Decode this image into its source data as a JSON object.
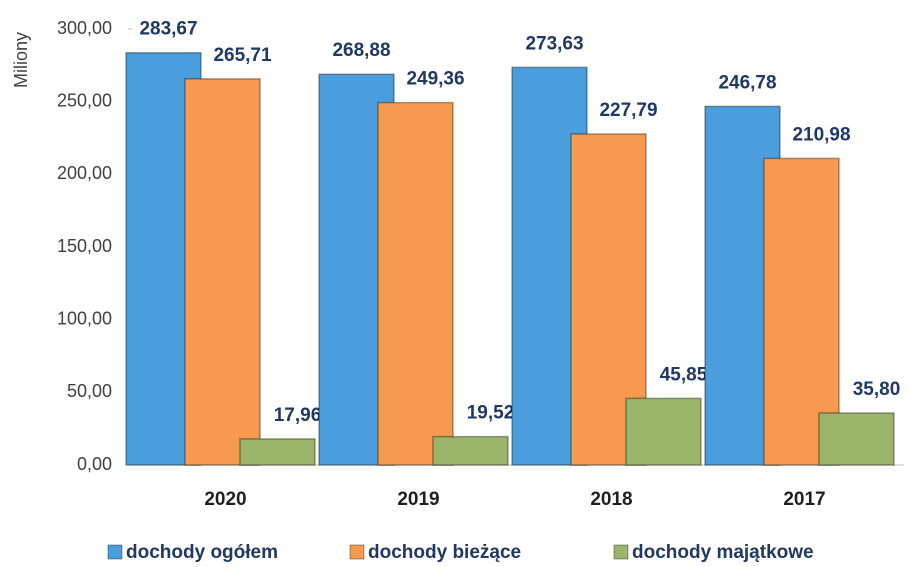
{
  "chart_data": {
    "type": "bar",
    "y_label": "Miliony",
    "categories": [
      "2020",
      "2019",
      "2018",
      "2017"
    ],
    "series": [
      {
        "name": "dochody ogółem",
        "color": "#4a9ede",
        "values": [
          283.67,
          268.88,
          273.63,
          246.78
        ],
        "value_labels": [
          "283,67",
          "268,88",
          "273,63",
          "246,78"
        ]
      },
      {
        "name": "dochody bieżące",
        "color": "#f59a4e",
        "values": [
          265.71,
          249.36,
          227.79,
          210.98
        ],
        "value_labels": [
          "265,71",
          "249,36",
          "227,79",
          "210,98"
        ]
      },
      {
        "name": "dochody majątkowe",
        "color": "#9bb56a",
        "values": [
          17.96,
          19.52,
          45.85,
          35.8
        ],
        "value_labels": [
          "17,96",
          "19,52",
          "45,85",
          "35,80"
        ]
      }
    ],
    "ylim": [
      0,
      300
    ],
    "yticks": [
      {
        "value": 0,
        "label": "0,00"
      },
      {
        "value": 50,
        "label": "50,00"
      },
      {
        "value": 100,
        "label": "100,00"
      },
      {
        "value": 150,
        "label": "150,00"
      },
      {
        "value": 200,
        "label": "200,00"
      },
      {
        "value": 250,
        "label": "250,00"
      },
      {
        "value": 300,
        "label": "300,00"
      }
    ],
    "legend": "bottom"
  }
}
